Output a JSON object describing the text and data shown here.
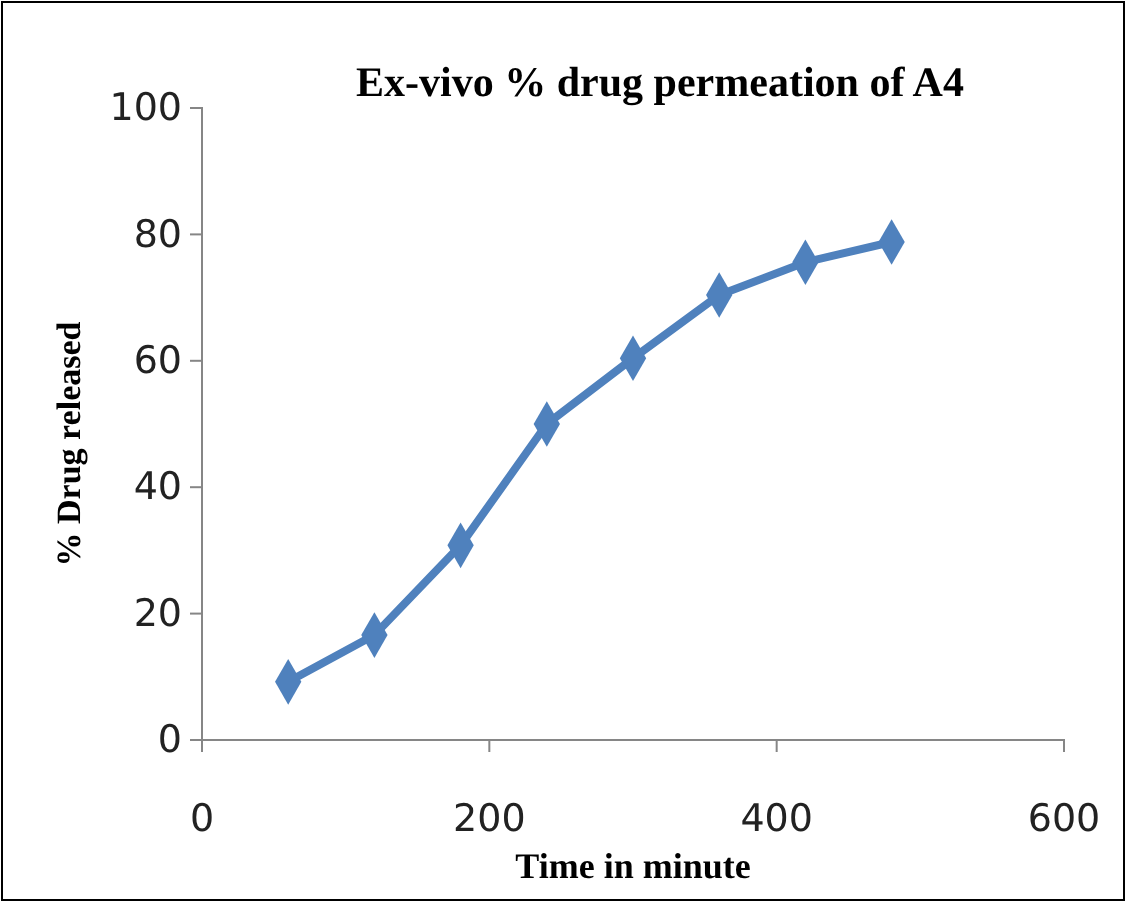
{
  "chart_data": {
    "type": "line",
    "title": "Ex-vivo % drug permeation of A4",
    "xlabel": "Time in minute",
    "ylabel": "% Drug released",
    "x": [
      60,
      120,
      180,
      240,
      300,
      360,
      420,
      480
    ],
    "series": [
      {
        "color": "#4f81bd",
        "values": [
          9.2,
          16.6,
          30.8,
          50,
          60.4,
          70.4,
          75.6,
          78.8
        ]
      }
    ],
    "xlim": [
      0,
      600
    ],
    "xticks": [
      0,
      200,
      400,
      600
    ],
    "ylim": [
      0,
      100
    ],
    "yticks": [
      0,
      20,
      40,
      60,
      80,
      100
    ],
    "marker": "diamond",
    "line_style": "solid"
  }
}
